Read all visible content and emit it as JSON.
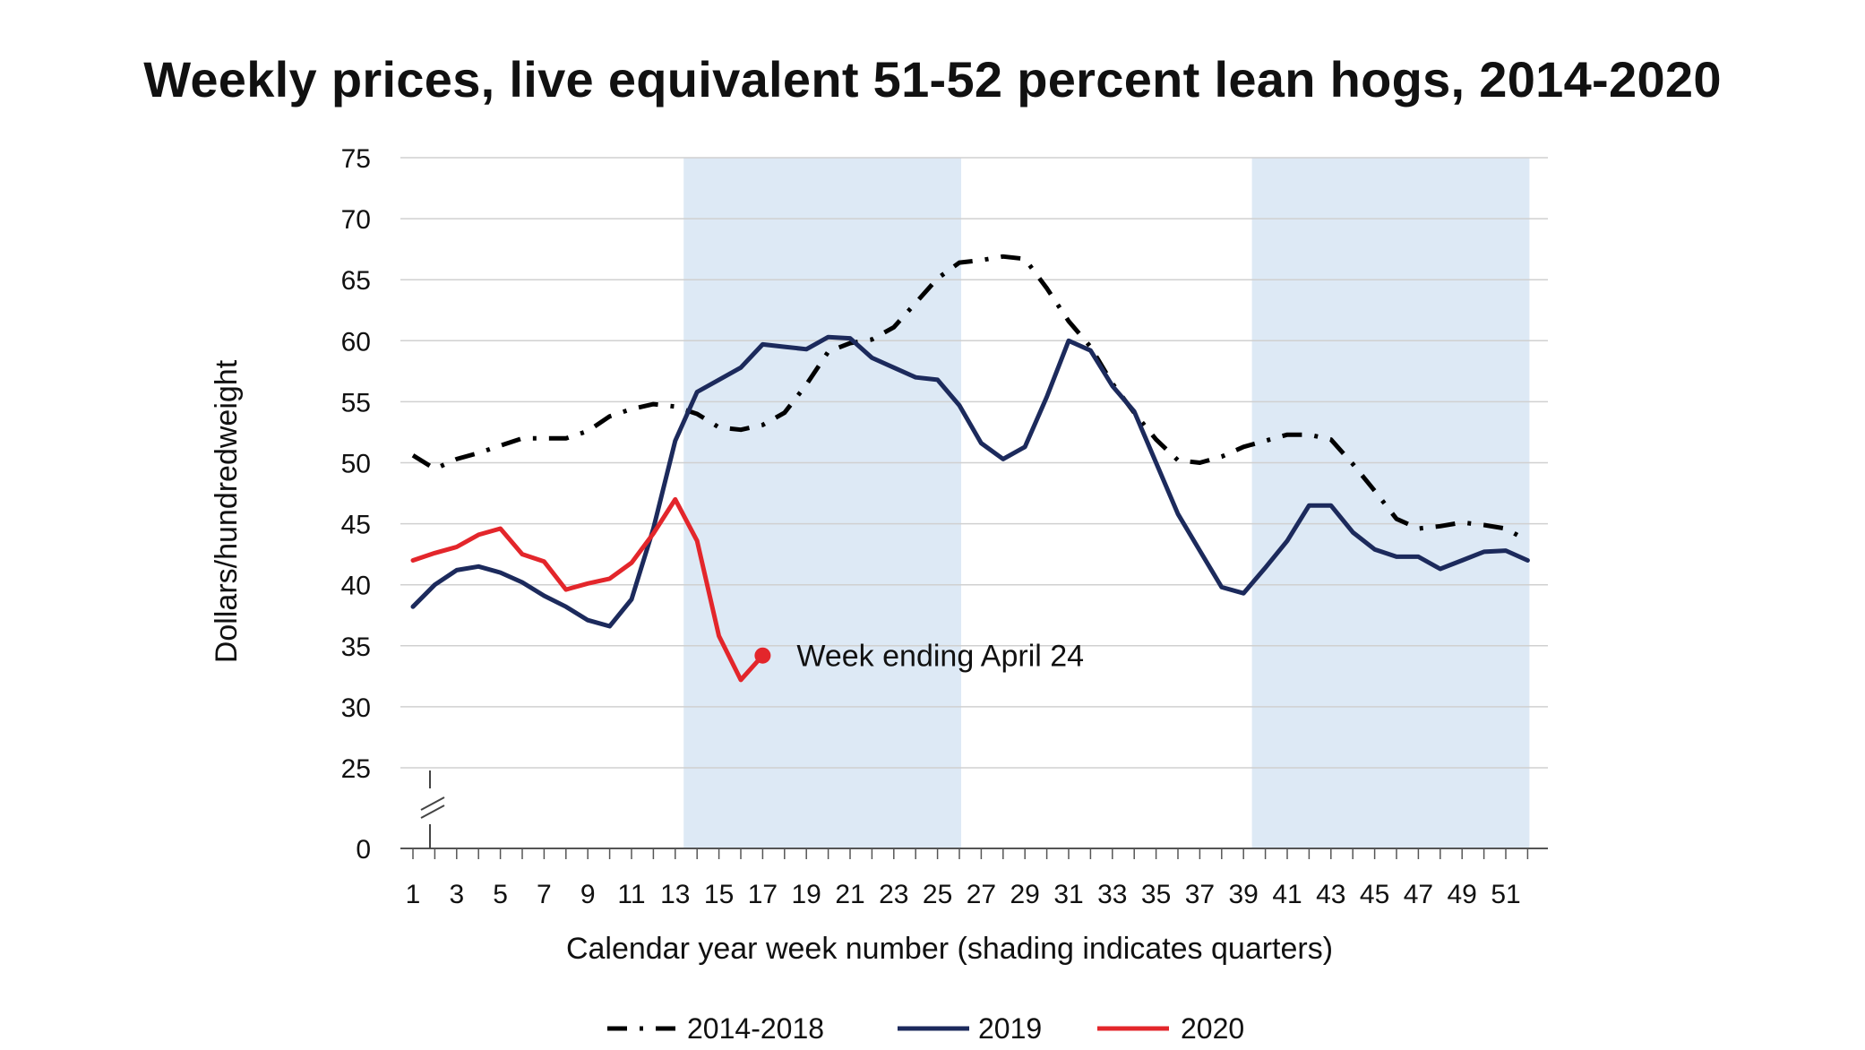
{
  "chart_data": {
    "type": "line",
    "title": "Weekly prices, live equivalent 51-52 percent lean hogs, 2014-2020",
    "xlabel": "Calendar year week number (shading indicates quarters)",
    "ylabel": "Dollars/hundredweight",
    "x_ticks": [
      "1",
      "3",
      "5",
      "7",
      "9",
      "11",
      "13",
      "15",
      "17",
      "19",
      "21",
      "23",
      "25",
      "27",
      "29",
      "31",
      "33",
      "35",
      "37",
      "39",
      "41",
      "43",
      "45",
      "47",
      "49",
      "51"
    ],
    "y_ticks": [
      "75",
      "70",
      "65",
      "60",
      "55",
      "50",
      "45",
      "40",
      "35",
      "30",
      "25",
      "0"
    ],
    "y_axis_break": "0 to 25",
    "ylim": [
      25,
      75
    ],
    "xlim": [
      1,
      52
    ],
    "grid": "horizontal",
    "shaded_quarters": [
      [
        14,
        26
      ],
      [
        40,
        52
      ]
    ],
    "legend_position": "bottom",
    "annotation": {
      "label": "Week ending April 24",
      "week": 17,
      "value": 34.2
    },
    "series": [
      {
        "name": "2014-2018",
        "color": "#000000",
        "style": "dash-dot",
        "weeks": [
          1,
          2,
          3,
          4,
          5,
          6,
          7,
          8,
          9,
          10,
          11,
          12,
          13,
          14,
          15,
          16,
          17,
          18,
          19,
          20,
          21,
          22,
          23,
          24,
          25,
          26,
          27,
          28,
          29,
          30,
          31,
          32,
          33,
          34,
          35,
          36,
          37,
          38,
          39,
          40,
          41,
          42,
          43,
          44,
          45,
          46,
          47,
          48,
          49,
          50,
          51,
          52
        ],
        "values": [
          50.6,
          49.5,
          50.3,
          50.8,
          51.4,
          52.0,
          52.0,
          52.0,
          52.6,
          53.8,
          54.4,
          54.8,
          54.6,
          54.0,
          52.9,
          52.7,
          53.1,
          54.1,
          56.4,
          59.1,
          59.8,
          60.1,
          61.1,
          63.1,
          65.1,
          66.4,
          66.6,
          66.9,
          66.7,
          64.3,
          61.6,
          59.5,
          56.5,
          54.1,
          51.9,
          50.2,
          50.0,
          50.5,
          51.3,
          51.8,
          52.3,
          52.3,
          51.9,
          49.9,
          47.7,
          45.4,
          44.6,
          44.8,
          45.1,
          44.9,
          44.6,
          43.6
        ]
      },
      {
        "name": "2019",
        "color": "#1c2a5c",
        "style": "solid",
        "weeks": [
          1,
          2,
          3,
          4,
          5,
          6,
          7,
          8,
          9,
          10,
          11,
          12,
          13,
          14,
          15,
          16,
          17,
          18,
          19,
          20,
          21,
          22,
          23,
          24,
          25,
          26,
          27,
          28,
          29,
          30,
          31,
          32,
          33,
          34,
          35,
          36,
          37,
          38,
          39,
          40,
          41,
          42,
          43,
          44,
          45,
          46,
          47,
          48,
          49,
          50,
          51,
          52
        ],
        "values": [
          38.2,
          40.0,
          41.2,
          41.5,
          41.0,
          40.2,
          39.1,
          38.2,
          37.1,
          36.6,
          38.8,
          44.6,
          51.8,
          55.8,
          56.8,
          57.8,
          59.7,
          59.5,
          59.3,
          60.3,
          60.2,
          58.6,
          57.8,
          57.0,
          56.8,
          54.7,
          51.6,
          50.3,
          51.3,
          55.4,
          60.0,
          59.2,
          56.3,
          54.2,
          50.0,
          45.8,
          42.8,
          39.8,
          39.3,
          41.4,
          43.6,
          46.5,
          46.5,
          44.3,
          42.9,
          42.3,
          42.3,
          41.3,
          42.0,
          42.7,
          42.8,
          42.0
        ]
      },
      {
        "name": "2020",
        "color": "#e3262b",
        "style": "solid",
        "weeks": [
          1,
          2,
          3,
          4,
          5,
          6,
          7,
          8,
          9,
          10,
          11,
          12,
          13,
          14,
          15,
          16,
          17
        ],
        "values": [
          42.0,
          42.6,
          43.1,
          44.1,
          44.6,
          42.5,
          41.9,
          39.6,
          40.1,
          40.5,
          41.8,
          44.2,
          47.0,
          43.6,
          35.8,
          32.2,
          34.2
        ]
      }
    ]
  }
}
